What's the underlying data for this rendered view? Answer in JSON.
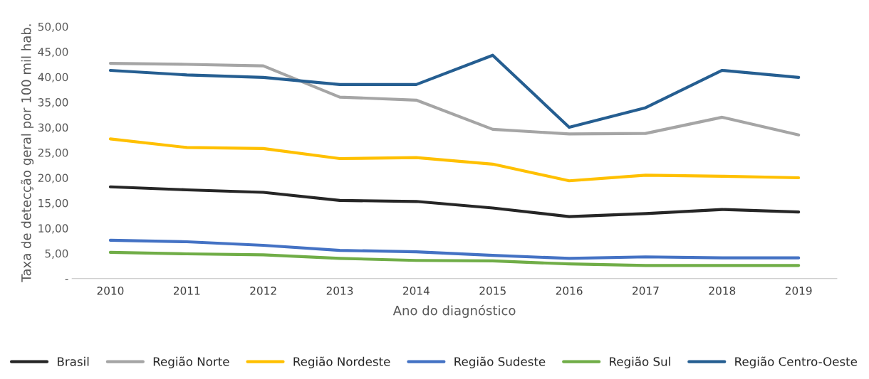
{
  "chart_data": {
    "type": "line",
    "xlabel": "Ano do diagnóstico",
    "ylabel": "Taxa de detecção geral por 100 mil hab.",
    "categories": [
      "2010",
      "2011",
      "2012",
      "2013",
      "2014",
      "2015",
      "2016",
      "2017",
      "2018",
      "2019"
    ],
    "ylim": [
      0,
      50
    ],
    "yticks": [
      {
        "value": 0,
        "label": "-"
      },
      {
        "value": 5,
        "label": "5,00"
      },
      {
        "value": 10,
        "label": "10,00"
      },
      {
        "value": 15,
        "label": "15,00"
      },
      {
        "value": 20,
        "label": "20,00"
      },
      {
        "value": 25,
        "label": "25,00"
      },
      {
        "value": 30,
        "label": "30,00"
      },
      {
        "value": 35,
        "label": "35,00"
      },
      {
        "value": 40,
        "label": "40,00"
      },
      {
        "value": 45,
        "label": "45,00"
      },
      {
        "value": 50,
        "label": "50,00"
      }
    ],
    "grid": false,
    "legend": "bottom",
    "marker": "none",
    "line_style": "solid",
    "series": [
      {
        "name": "Brasil",
        "color": "#262626",
        "values": [
          18.2,
          17.6,
          17.1,
          15.5,
          15.3,
          14.0,
          12.3,
          12.9,
          13.7,
          13.2
        ]
      },
      {
        "name": "Região Norte",
        "color": "#a5a5a5",
        "values": [
          42.7,
          42.5,
          42.2,
          36.0,
          35.4,
          29.6,
          28.7,
          28.8,
          32.0,
          28.5
        ]
      },
      {
        "name": "Região Nordeste",
        "color": "#ffc000",
        "values": [
          27.7,
          26.0,
          25.8,
          23.8,
          24.0,
          22.7,
          19.4,
          20.5,
          20.3,
          20.0
        ]
      },
      {
        "name": "Região Sudeste",
        "color": "#4472c4",
        "values": [
          7.6,
          7.3,
          6.6,
          5.6,
          5.3,
          4.6,
          4.0,
          4.3,
          4.1,
          4.1
        ]
      },
      {
        "name": "Região Sul",
        "color": "#70ad47",
        "values": [
          5.2,
          4.9,
          4.7,
          4.0,
          3.6,
          3.5,
          2.9,
          2.6,
          2.6,
          2.6
        ]
      },
      {
        "name": "Região Centro-Oeste",
        "color": "#255e91",
        "values": [
          41.3,
          40.4,
          39.9,
          38.5,
          38.5,
          44.3,
          30.0,
          33.9,
          41.3,
          39.9
        ]
      }
    ]
  }
}
